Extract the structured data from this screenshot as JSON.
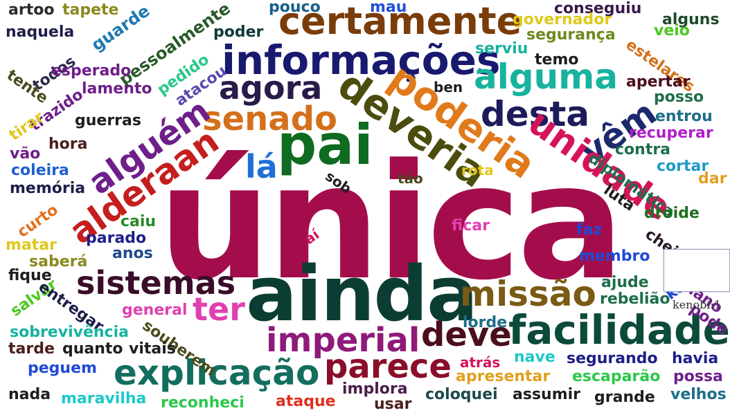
{
  "words": [
    {
      "t": "única",
      "c": "#a40d4c"
    },
    {
      "t": "ainda",
      "c": "#0b3d33"
    },
    {
      "t": "pai",
      "c": "#0e6b20"
    },
    {
      "t": "informações",
      "c": "#191970"
    },
    {
      "t": "certamente",
      "c": "#7a3d0a"
    },
    {
      "t": "deveria",
      "c": "#4c4c0e"
    },
    {
      "t": "poderia",
      "c": "#e07a1b"
    },
    {
      "t": "alguma",
      "c": "#17b39e"
    },
    {
      "t": "desta",
      "c": "#1c1c5c"
    },
    {
      "t": "vêm",
      "c": "#1c2a6b"
    },
    {
      "t": "unidade",
      "c": "#d4145a"
    },
    {
      "t": "senado",
      "c": "#d4701b"
    },
    {
      "t": "agora",
      "c": "#2a1a4a"
    },
    {
      "t": "alguém",
      "c": "#6e1f8a"
    },
    {
      "t": "alderaan",
      "c": "#c41e1e"
    },
    {
      "t": "lá",
      "c": "#1f6fd6"
    },
    {
      "t": "sistemas",
      "c": "#3a0d2a"
    },
    {
      "t": "missão",
      "c": "#7a5a14"
    },
    {
      "t": "ter",
      "c": "#e040b0"
    },
    {
      "t": "imperial",
      "c": "#8e1b7a"
    },
    {
      "t": "deve",
      "c": "#4a0e1c"
    },
    {
      "t": "facilidade",
      "c": "#0c4a3a"
    },
    {
      "t": "explicação",
      "c": "#136e5e"
    },
    {
      "t": "parece",
      "c": "#8a0e2a"
    },
    {
      "t": "artoo",
      "c": "#2a2a2a"
    },
    {
      "t": "tapete",
      "c": "#8a8a1e"
    },
    {
      "t": "guarde",
      "c": "#1e7ab0"
    },
    {
      "t": "pessoalmente",
      "c": "#2a5a2a"
    },
    {
      "t": "pouco",
      "c": "#16608a"
    },
    {
      "t": "mau",
      "c": "#1f4fd6"
    },
    {
      "t": "conseguiu",
      "c": "#3a1a4a"
    },
    {
      "t": "alguns",
      "c": "#1e4a2a"
    },
    {
      "t": "naquela",
      "c": "#1e1e4a"
    },
    {
      "t": "poder",
      "c": "#0e3a3a"
    },
    {
      "t": "governador",
      "c": "#e0c81e"
    },
    {
      "t": "veio",
      "c": "#4ac81e"
    },
    {
      "t": "todos",
      "c": "#2a2a4a"
    },
    {
      "t": "pedido",
      "c": "#2ac88a"
    },
    {
      "t": "segurança",
      "c": "#6e8a1e"
    },
    {
      "t": "estelares",
      "c": "#d4701b"
    },
    {
      "t": "esperado",
      "c": "#6e1f8a"
    },
    {
      "t": "atacou",
      "c": "#5a4ab0"
    },
    {
      "t": "serviu",
      "c": "#17b39e"
    },
    {
      "t": "temo",
      "c": "#1e1e1e"
    },
    {
      "t": "tente",
      "c": "#4a4a1e"
    },
    {
      "t": "lamento",
      "c": "#6e1f8a"
    },
    {
      "t": "ben",
      "c": "#1e1e1e"
    },
    {
      "t": "apertar",
      "c": "#4a0e1c"
    },
    {
      "t": "posso",
      "c": "#1e6e4a"
    },
    {
      "t": "trazido",
      "c": "#6e1f8a"
    },
    {
      "t": "guerras",
      "c": "#1e1e1e"
    },
    {
      "t": "entrou",
      "c": "#1e6e8a"
    },
    {
      "t": "tirar",
      "c": "#e0c81e"
    },
    {
      "t": "recuperar",
      "c": "#b01ec8"
    },
    {
      "t": "hora",
      "c": "#4a1e1e"
    },
    {
      "t": "vão",
      "c": "#6e1f8a"
    },
    {
      "t": "coleira",
      "c": "#1f5fd6"
    },
    {
      "t": "contra",
      "c": "#1e6e4a"
    },
    {
      "t": "diplomática",
      "c": "#1e6e4a"
    },
    {
      "t": "cortar",
      "c": "#1e9ac8"
    },
    {
      "t": "memória",
      "c": "#1e1e4a"
    },
    {
      "t": "sob",
      "c": "#1e1e1e"
    },
    {
      "t": "tão",
      "c": "#4a4a1e"
    },
    {
      "t": "rota",
      "c": "#e0c81e"
    },
    {
      "t": "dar",
      "c": "#e0a01e"
    },
    {
      "t": "luta",
      "c": "#1e1e1e"
    },
    {
      "t": "curto",
      "c": "#e0701e"
    },
    {
      "t": "droide",
      "c": "#1e6e1e"
    },
    {
      "t": "aí",
      "c": "#d4145a"
    },
    {
      "t": "caiu",
      "c": "#2a8a2a"
    },
    {
      "t": "ficar",
      "c": "#e040b0"
    },
    {
      "t": "faz",
      "c": "#1e4ad6"
    },
    {
      "t": "matar",
      "c": "#e0c81e"
    },
    {
      "t": "parado",
      "c": "#1e1e8a"
    },
    {
      "t": "cheiro",
      "c": "#2a1a2a"
    },
    {
      "t": "anos",
      "c": "#1e4a8a"
    },
    {
      "t": "saberá",
      "c": "#8a8a1e"
    },
    {
      "t": "membro",
      "c": "#1e4ad6"
    },
    {
      "t": "kenobi",
      "c": "#1e4ad6"
    },
    {
      "t": "fique",
      "c": "#1e1e1e"
    },
    {
      "t": "ajude",
      "c": "#1e6e4a"
    },
    {
      "t": "plano",
      "c": "#6e1f8a"
    },
    {
      "t": "salvar",
      "c": "#4ac81e"
    },
    {
      "t": "entregar",
      "c": "#1e1e4a"
    },
    {
      "t": "general",
      "c": "#e040b0"
    },
    {
      "t": "rebelião",
      "c": "#1e6e4a"
    },
    {
      "t": "pode",
      "c": "#6e1f8a"
    },
    {
      "t": "sobrevivência",
      "c": "#17b39e"
    },
    {
      "t": "souberem",
      "c": "#4a4a1e"
    },
    {
      "t": "lorde",
      "c": "#1e6e8a"
    },
    {
      "t": "tarde",
      "c": "#4a1e1e"
    },
    {
      "t": "quanto",
      "c": "#1e1e1e"
    },
    {
      "t": "vitais",
      "c": "#1e1e1e"
    },
    {
      "t": "nave",
      "c": "#1ec8c8"
    },
    {
      "t": "segurando",
      "c": "#1e1e8a"
    },
    {
      "t": "havia",
      "c": "#1e1e8a"
    },
    {
      "t": "peguem",
      "c": "#1e4ad6"
    },
    {
      "t": "atrás",
      "c": "#d4145a"
    },
    {
      "t": "apresentar",
      "c": "#e0a01e"
    },
    {
      "t": "escaparão",
      "c": "#2ac84a"
    },
    {
      "t": "possa",
      "c": "#6e1f8a"
    },
    {
      "t": "nada",
      "c": "#1e1e1e"
    },
    {
      "t": "maravilha",
      "c": "#1ec8c8"
    },
    {
      "t": "reconheci",
      "c": "#2ac84a"
    },
    {
      "t": "ataque",
      "c": "#e0301e"
    },
    {
      "t": "implora",
      "c": "#4a1e4a"
    },
    {
      "t": "usar",
      "c": "#4a1e1e"
    },
    {
      "t": "coloquei",
      "c": "#1e4a4a"
    },
    {
      "t": "assumir",
      "c": "#1e1e1e"
    },
    {
      "t": "grande",
      "c": "#1e1e1e"
    },
    {
      "t": "velhos",
      "c": "#1e6e8a"
    }
  ],
  "tooltip": {
    "text": "kenobi:1"
  }
}
